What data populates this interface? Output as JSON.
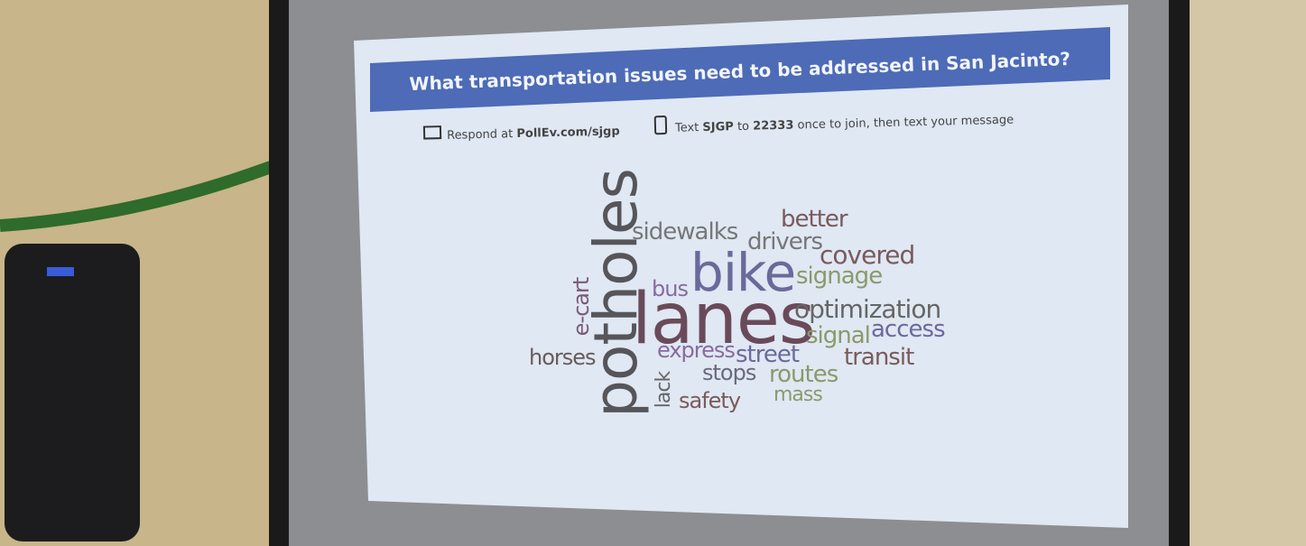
{
  "slide": {
    "title": "What transportation issues need to be addressed in San Jacinto?",
    "respond": [
      "Respond at",
      "PollEv.com/sjgp"
    ],
    "text": [
      "Text",
      "SJGP",
      "to",
      "22333",
      "once to join, then text your message"
    ],
    "words": [
      "potholes",
      "e-cart",
      "lack",
      "sidewalks",
      "better",
      "drivers",
      "bike",
      "covered",
      "signage",
      "bus",
      "lanes",
      "optimization",
      "signal",
      "access",
      "horses",
      "express",
      "street",
      "transit",
      "stops",
      "routes",
      "safety",
      "mass"
    ]
  }
}
